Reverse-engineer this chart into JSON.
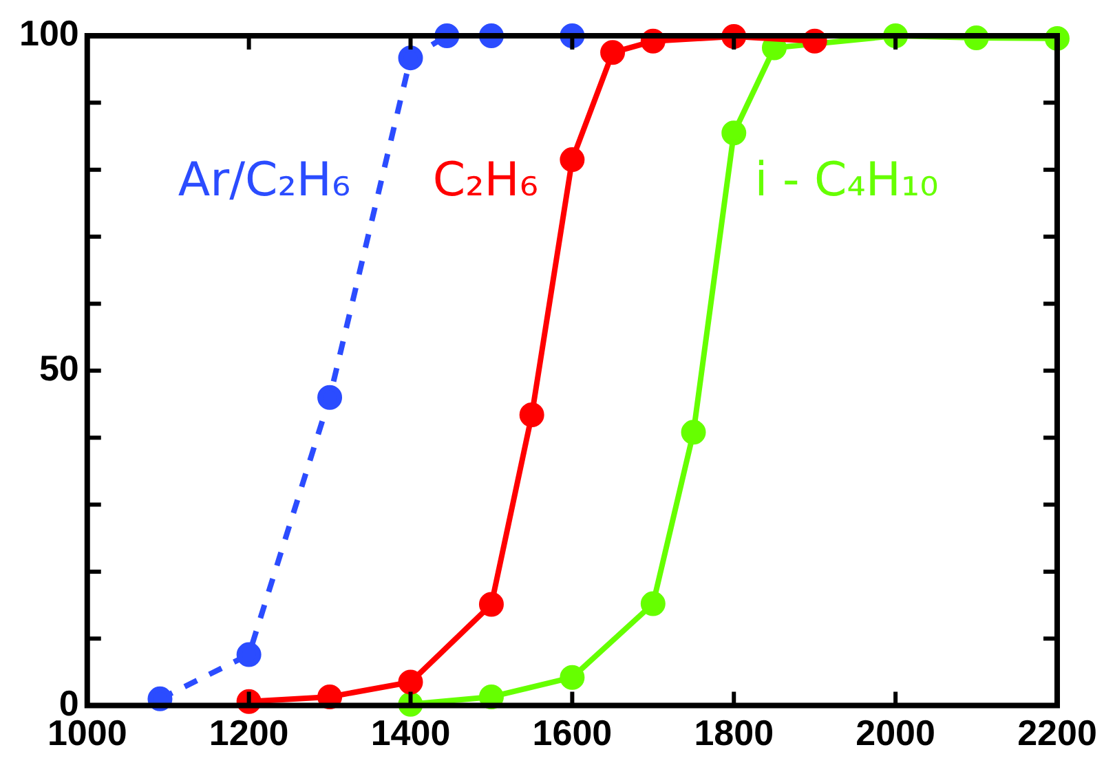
{
  "chart_data": {
    "type": "line",
    "marker": "circle",
    "legend": false,
    "grid": false,
    "xlim": [
      1000,
      2200
    ],
    "xticks": [
      1000,
      1200,
      1400,
      1600,
      1800,
      2000,
      2200
    ],
    "ylim": [
      0,
      100
    ],
    "yticks": [
      0,
      {
        "value": 10,
        "label": null
      },
      {
        "value": 20,
        "label": null
      },
      {
        "value": 30,
        "label": null
      },
      {
        "value": 40,
        "label": null
      },
      50,
      {
        "value": 60,
        "label": null
      },
      {
        "value": 70,
        "label": null
      },
      {
        "value": 80,
        "label": null
      },
      {
        "value": 90,
        "label": null
      },
      100
    ],
    "series": [
      {
        "name": "Ar/C₂H₆",
        "color": "#2b4cff",
        "line_style": "dashed",
        "x": [
          1090,
          1200,
          1300,
          1400,
          1445,
          1500,
          1600
        ],
        "values": [
          1,
          7.6,
          46,
          96.7,
          100,
          100,
          100
        ]
      },
      {
        "name": "C₂H₆",
        "color": "#ff0000",
        "line_style": "solid",
        "x": [
          1200,
          1300,
          1400,
          1500,
          1550,
          1600,
          1650,
          1700,
          1800,
          1900
        ],
        "values": [
          0.6,
          1.3,
          3.5,
          15.1,
          43.4,
          81.5,
          97.5,
          99.2,
          99.9,
          99.2
        ]
      },
      {
        "name": "i - C₄H₁₀",
        "color": "#66ff00",
        "line_style": "solid",
        "x": [
          1400,
          1500,
          1600,
          1700,
          1750,
          1800,
          1850,
          1900,
          2000,
          2100,
          2200
        ],
        "values": [
          0.2,
          1.3,
          4.2,
          15.2,
          40.8,
          85.5,
          98.2,
          null,
          100,
          99.7,
          99.6
        ]
      }
    ]
  }
}
